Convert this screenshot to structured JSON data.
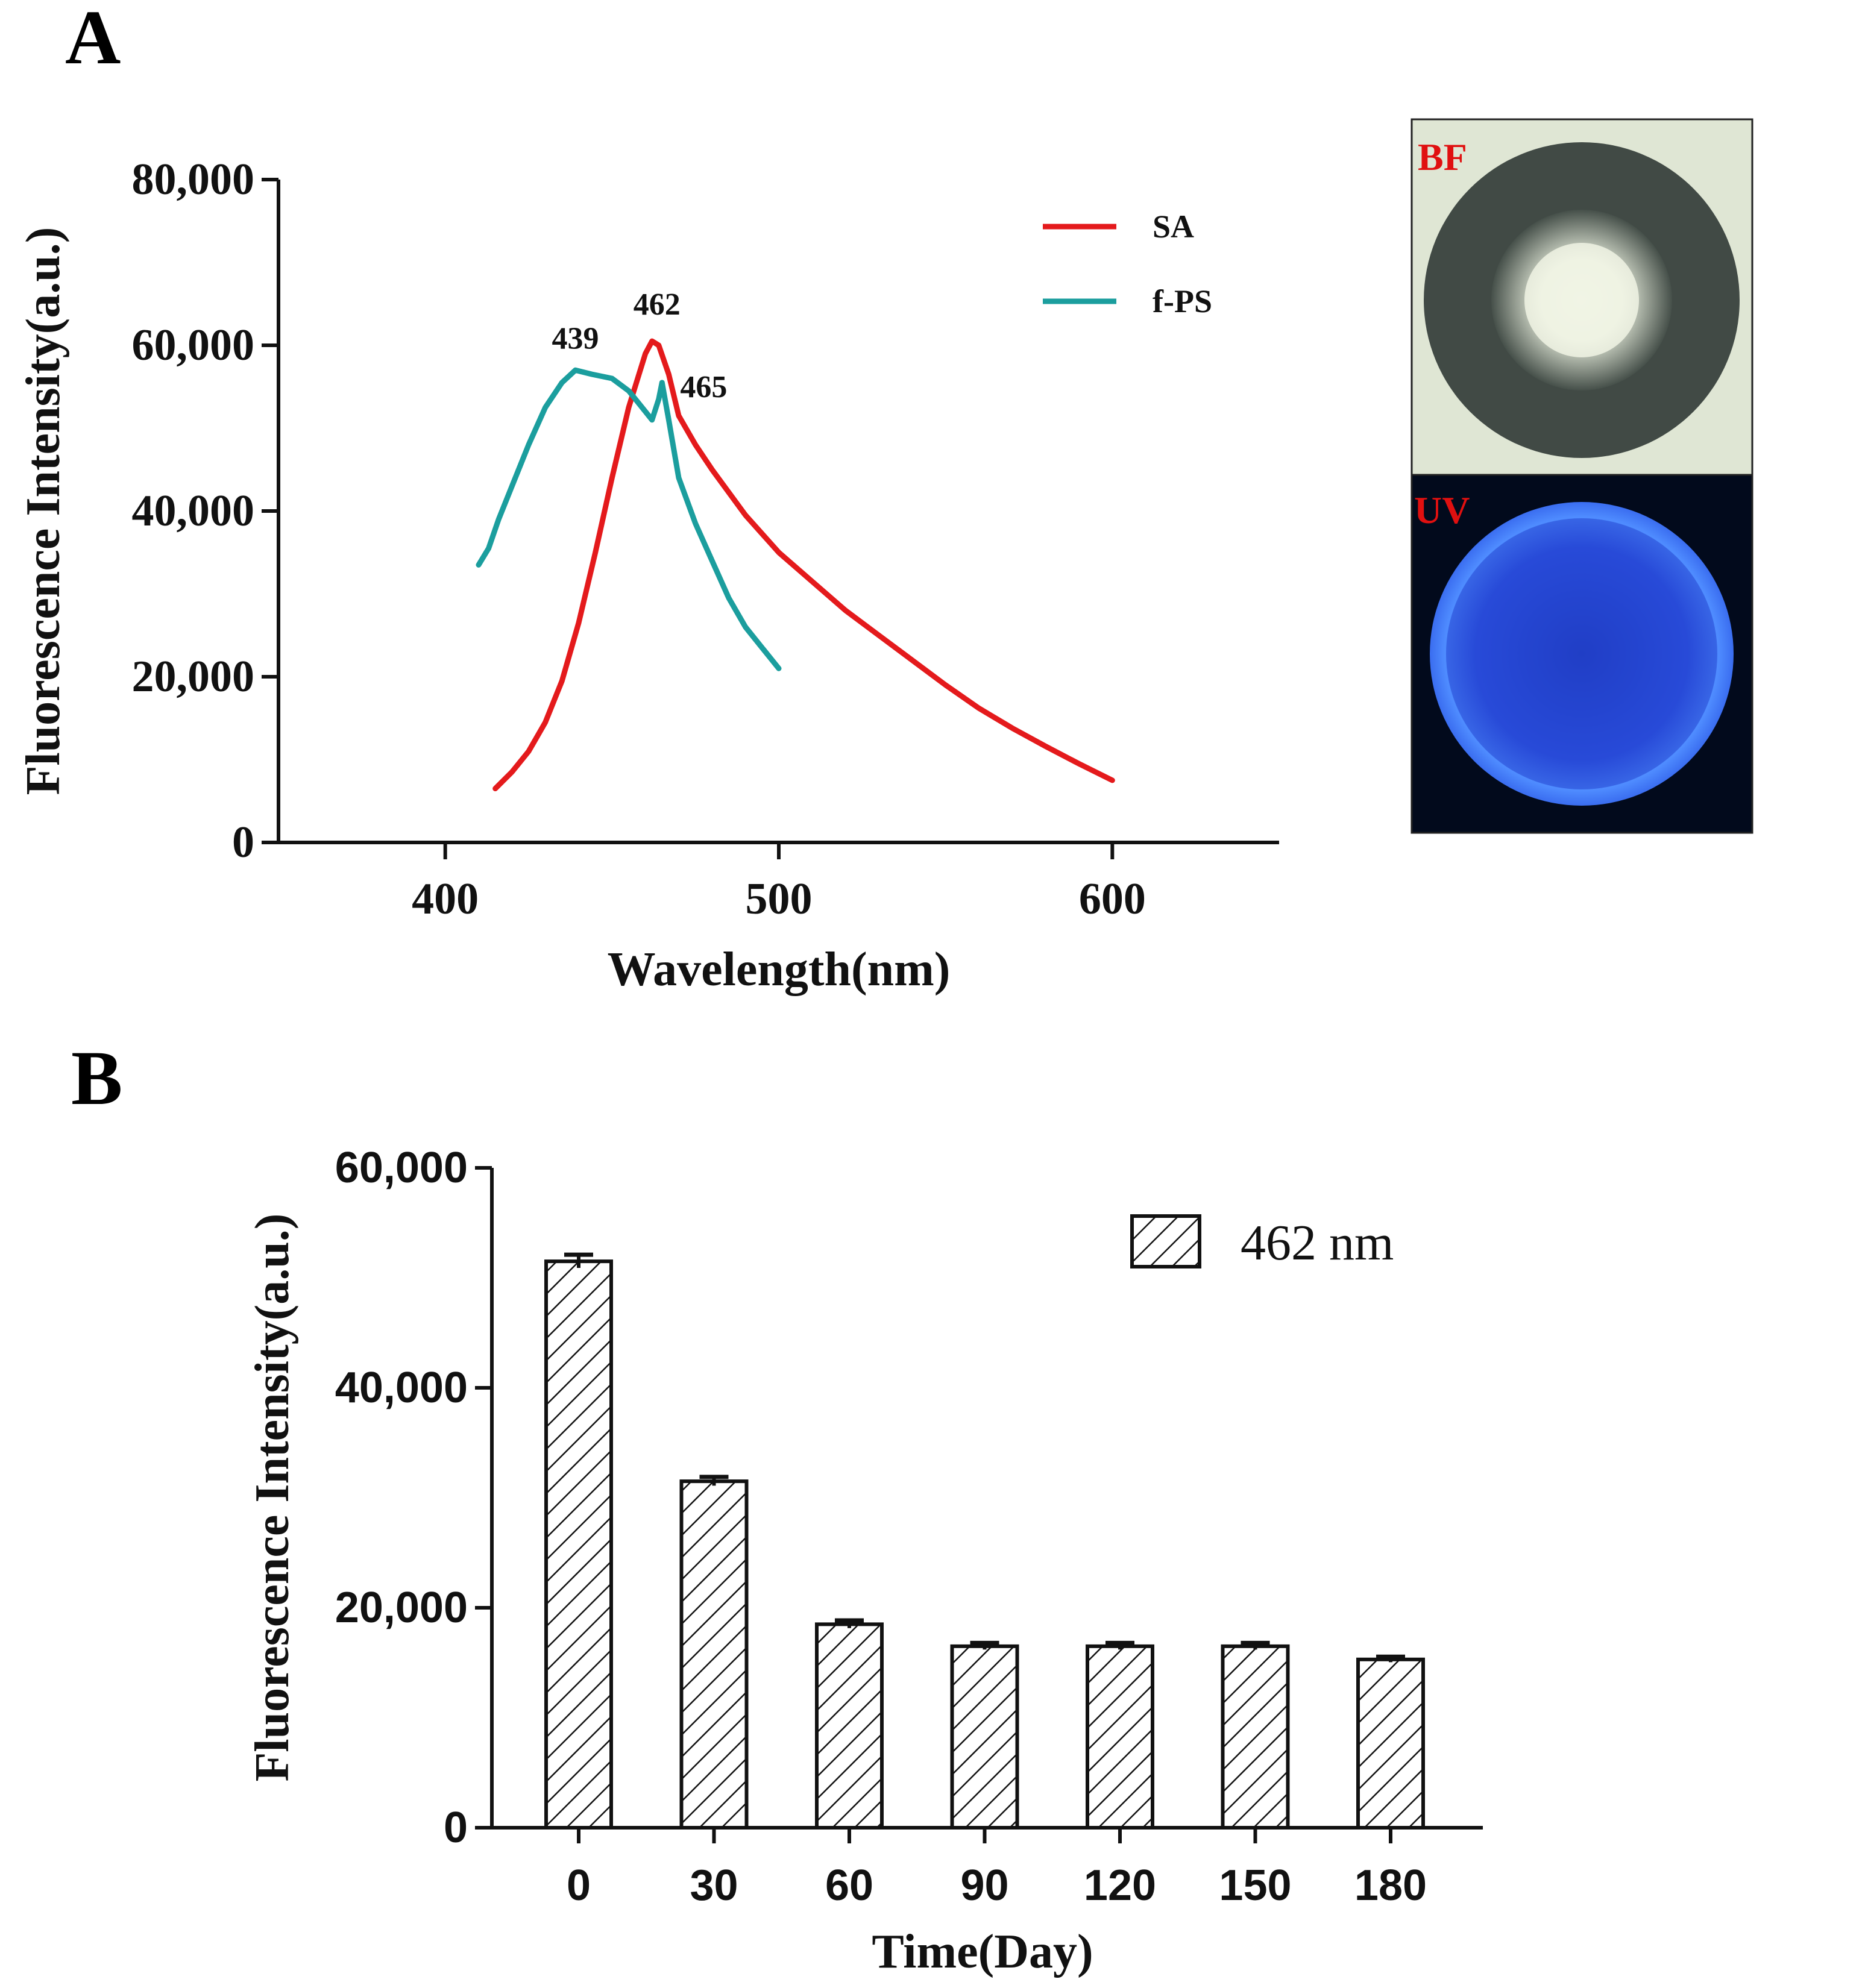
{
  "panels": {
    "a_label": "A",
    "b_label": "B"
  },
  "chart_data": [
    {
      "type": "line",
      "xlabel": "Wavelength(nm)",
      "ylabel": "Fluorescence Intensity(a.u.)",
      "xlim": [
        350,
        650
      ],
      "ylim": [
        0,
        80000
      ],
      "xticks": [
        400,
        500,
        600
      ],
      "xtick_labels": [
        "400",
        "500",
        "600"
      ],
      "yticks": [
        0,
        20000,
        40000,
        60000,
        80000
      ],
      "ytick_labels": [
        "0",
        "20,000",
        "40,000",
        "60,000",
        "80,000"
      ],
      "legend_position": "top-right",
      "series": [
        {
          "name": "SA",
          "color": "#e41a1c",
          "points": [
            [
              415,
              6500
            ],
            [
              420,
              8500
            ],
            [
              425,
              11000
            ],
            [
              430,
              14500
            ],
            [
              435,
              19500
            ],
            [
              440,
              26500
            ],
            [
              445,
              35000
            ],
            [
              450,
              44000
            ],
            [
              455,
              52500
            ],
            [
              460,
              59000
            ],
            [
              462,
              60500
            ],
            [
              464,
              60000
            ],
            [
              467,
              56500
            ],
            [
              470,
              51500
            ],
            [
              475,
              48000
            ],
            [
              480,
              45000
            ],
            [
              490,
              39500
            ],
            [
              500,
              35000
            ],
            [
              510,
              31500
            ],
            [
              520,
              28000
            ],
            [
              530,
              25000
            ],
            [
              540,
              22000
            ],
            [
              550,
              19000
            ],
            [
              560,
              16200
            ],
            [
              570,
              13800
            ],
            [
              580,
              11600
            ],
            [
              590,
              9500
            ],
            [
              600,
              7500
            ]
          ]
        },
        {
          "name": "f-PS",
          "color": "#1b9e9e",
          "points": [
            [
              410,
              33500
            ],
            [
              413,
              35500
            ],
            [
              416,
              39000
            ],
            [
              420,
              43000
            ],
            [
              425,
              48000
            ],
            [
              430,
              52500
            ],
            [
              435,
              55500
            ],
            [
              439,
              57000
            ],
            [
              444,
              56500
            ],
            [
              450,
              56000
            ],
            [
              455,
              54500
            ],
            [
              460,
              52000
            ],
            [
              462,
              51000
            ],
            [
              464,
              53500
            ],
            [
              465,
              55500
            ],
            [
              467,
              51000
            ],
            [
              470,
              44000
            ],
            [
              475,
              38500
            ],
            [
              480,
              34000
            ],
            [
              485,
              29500
            ],
            [
              490,
              26000
            ],
            [
              495,
              23500
            ],
            [
              500,
              21000
            ]
          ]
        }
      ],
      "annotations": [
        {
          "text": "439",
          "x": 439,
          "y": 57000
        },
        {
          "text": "462",
          "x": 462,
          "y": 60500
        },
        {
          "text": "465",
          "x": 465,
          "y": 55500
        }
      ]
    },
    {
      "type": "bar",
      "xlabel": "Time(Day)",
      "ylabel": "Fluorescence Intensity(a.u.)",
      "ylim": [
        0,
        60000
      ],
      "yticks": [
        0,
        20000,
        40000,
        60000
      ],
      "ytick_labels": [
        "0",
        "20,000",
        "40,000",
        "60,000"
      ],
      "categories": [
        "0",
        "30",
        "60",
        "90",
        "120",
        "150",
        "180"
      ],
      "series": [
        {
          "name": "462 nm",
          "values": [
            51500,
            31500,
            18500,
            16500,
            16500,
            16500,
            15300
          ],
          "errors": [
            600,
            400,
            350,
            300,
            300,
            300,
            250
          ]
        }
      ],
      "legend_position": "top-right"
    }
  ],
  "inset": {
    "bf_label": "BF",
    "uv_label": "UV"
  }
}
